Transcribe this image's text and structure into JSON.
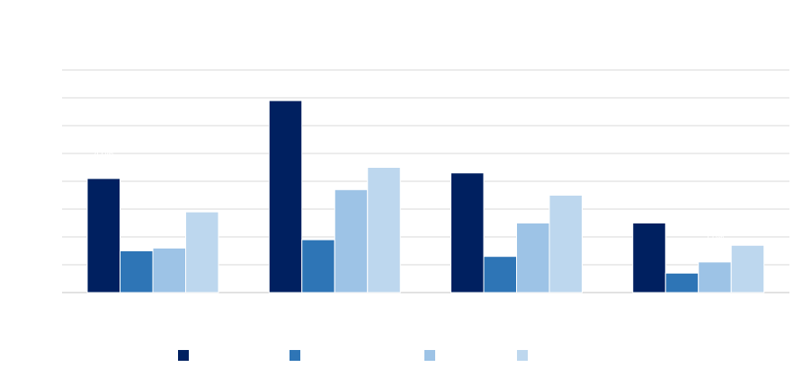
{
  "chart_data": {
    "type": "bar",
    "title": "",
    "xlabel": "",
    "ylabel": "",
    "ylim": [
      0,
      80
    ],
    "grid": true,
    "legend_position": "bottom",
    "categories": [
      "",
      "",
      "",
      ""
    ],
    "series": [
      {
        "color": "#002060",
        "values": [
          41,
          69,
          43,
          25
        ],
        "labels": [
          "41%",
          "69%",
          "43%",
          "25%"
        ]
      },
      {
        "color": "#2E75B6",
        "values": [
          15,
          19,
          13,
          7
        ],
        "labels": [
          "15%",
          "19%",
          "13%",
          "7%"
        ]
      },
      {
        "color": "#9DC3E6",
        "values": [
          16,
          37,
          25,
          11
        ],
        "labels": [
          "16%",
          "37%",
          "25%",
          "11%"
        ]
      },
      {
        "color": "#BDD7EE",
        "values": [
          29,
          45,
          35,
          17
        ],
        "labels": [
          "29%",
          "45%",
          "35%",
          "17%"
        ]
      }
    ]
  }
}
